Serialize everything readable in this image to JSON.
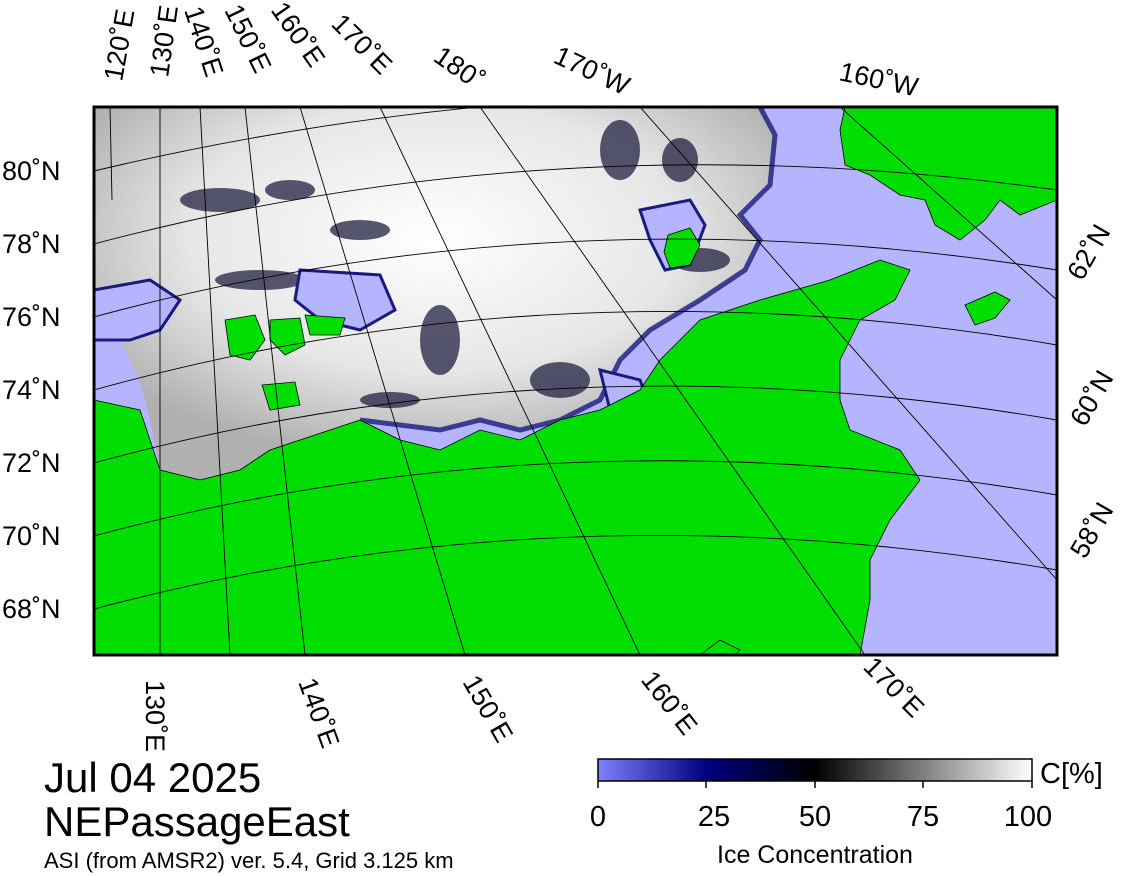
{
  "map": {
    "date": "Jul 04 2025",
    "region": "NEPassageEast",
    "source": "ASI (from AMSR2) ver. 5.4,  Grid 3.125 km",
    "top_lon_labels": [
      "120˚E",
      "130˚E",
      "140˚E",
      "150˚E",
      "160˚E",
      "170˚E",
      "180˚",
      "170˚W",
      "160˚W"
    ],
    "left_lat_labels": [
      "80˚N",
      "78˚N",
      "76˚N",
      "74˚N",
      "72˚N",
      "70˚N",
      "68˚N"
    ],
    "right_lat_labels": [
      "62˚N",
      "60˚N",
      "58˚N"
    ],
    "bottom_lon_labels": [
      "130˚E",
      "140˚E",
      "150˚E",
      "160˚E",
      "170˚E"
    ],
    "colors": {
      "land": "#00dd00",
      "open_water": "#b4b4ff",
      "ice_high": "#ffffff",
      "ice_low": "#000040"
    }
  },
  "colorbar": {
    "title": "Ice Concentration",
    "unit": "C[%]",
    "ticks": [
      "0",
      "25",
      "50",
      "75",
      "100"
    ],
    "gradient": [
      "#8080ff",
      "#000080",
      "#000000",
      "#808080",
      "#ffffff"
    ]
  }
}
